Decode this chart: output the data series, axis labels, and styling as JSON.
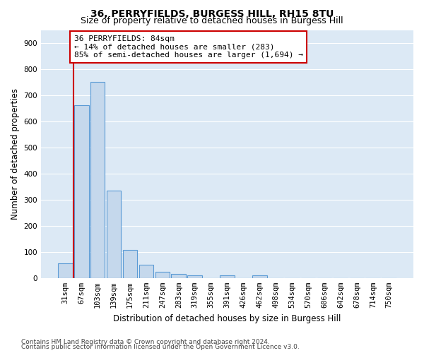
{
  "title1": "36, PERRYFIELDS, BURGESS HILL, RH15 8TU",
  "title2": "Size of property relative to detached houses in Burgess Hill",
  "xlabel": "Distribution of detached houses by size in Burgess Hill",
  "ylabel": "Number of detached properties",
  "categories": [
    "31sqm",
    "67sqm",
    "103sqm",
    "139sqm",
    "175sqm",
    "211sqm",
    "247sqm",
    "283sqm",
    "319sqm",
    "355sqm",
    "391sqm",
    "426sqm",
    "462sqm",
    "498sqm",
    "534sqm",
    "570sqm",
    "606sqm",
    "642sqm",
    "678sqm",
    "714sqm",
    "750sqm"
  ],
  "values": [
    55,
    662,
    750,
    335,
    108,
    52,
    25,
    15,
    10,
    0,
    10,
    0,
    10,
    0,
    0,
    0,
    0,
    0,
    0,
    0,
    0
  ],
  "bar_color": "#c5d8ec",
  "bar_edge_color": "#5b9bd5",
  "vline_x": 0.5,
  "vline_color": "#cc0000",
  "annotation_text": "36 PERRYFIELDS: 84sqm\n← 14% of detached houses are smaller (283)\n85% of semi-detached houses are larger (1,694) →",
  "annotation_box_color": "white",
  "annotation_box_edge_color": "#cc0000",
  "ylim": [
    0,
    950
  ],
  "yticks": [
    0,
    100,
    200,
    300,
    400,
    500,
    600,
    700,
    800,
    900
  ],
  "footer1": "Contains HM Land Registry data © Crown copyright and database right 2024.",
  "footer2": "Contains public sector information licensed under the Open Government Licence v3.0.",
  "plot_bg_color": "#dce9f5",
  "grid_color": "white",
  "title1_fontsize": 10,
  "title2_fontsize": 9,
  "annotation_fontsize": 8,
  "xlabel_fontsize": 8.5,
  "ylabel_fontsize": 8.5,
  "tick_fontsize": 7.5,
  "footer_fontsize": 6.5
}
